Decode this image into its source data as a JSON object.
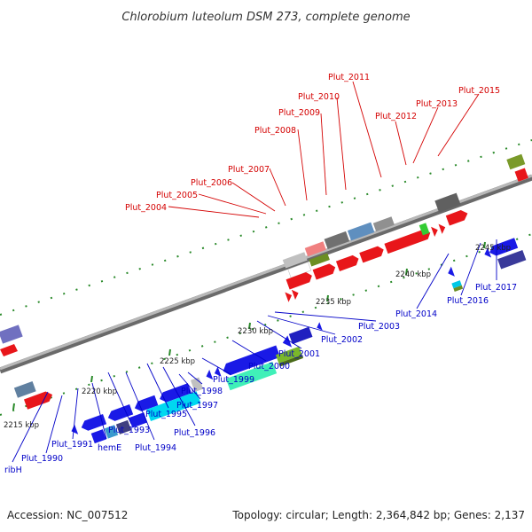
{
  "title": "Chlorobium luteolum DSM 273, complete genome",
  "footer": {
    "accession": "Accession: NC_007512",
    "summary": "Topology: circular; Length: 2,364,842 bp; Genes: 2,137"
  },
  "colors": {
    "top_labels": "#d40000",
    "bottom_labels": "#0000c8",
    "backbone": "#909090",
    "tick": "#2a8a2a"
  },
  "scale_labels": [
    {
      "text": "2215 kbp",
      "pos": 2215
    },
    {
      "text": "2220 kbp",
      "pos": 2220
    },
    {
      "text": "2225 kbp",
      "pos": 2225
    },
    {
      "text": "2230 kbp",
      "pos": 2230
    },
    {
      "text": "2235 kbp",
      "pos": 2235
    },
    {
      "text": "2240 kbp",
      "pos": 2240
    },
    {
      "text": "2245 kbp",
      "pos": 2245
    }
  ],
  "top_genes": [
    {
      "text": "Plut_2004"
    },
    {
      "text": "Plut_2005"
    },
    {
      "text": "Plut_2006"
    },
    {
      "text": "Plut_2007"
    },
    {
      "text": "Plut_2008"
    },
    {
      "text": "Plut_2009"
    },
    {
      "text": "Plut_2010"
    },
    {
      "text": "Plut_2011"
    },
    {
      "text": "Plut_2012"
    },
    {
      "text": "Plut_2013"
    },
    {
      "text": "Plut_2015"
    }
  ],
  "bottom_genes": [
    {
      "text": "ribH"
    },
    {
      "text": "Plut_1990"
    },
    {
      "text": "Plut_1991"
    },
    {
      "text": "hemE"
    },
    {
      "text": "Plut_1993"
    },
    {
      "text": "Plut_1994"
    },
    {
      "text": "Plut_1995"
    },
    {
      "text": "Plut_1996"
    },
    {
      "text": "Plut_1997"
    },
    {
      "text": "Plut_1998"
    },
    {
      "text": "Plut_1999"
    },
    {
      "text": "Plut_2000"
    },
    {
      "text": "Plut_2001"
    },
    {
      "text": "Plut_2002"
    },
    {
      "text": "Plut_2003"
    },
    {
      "text": "Plut_2014"
    },
    {
      "text": "Plut_2016"
    },
    {
      "text": "Plut_2017"
    }
  ]
}
